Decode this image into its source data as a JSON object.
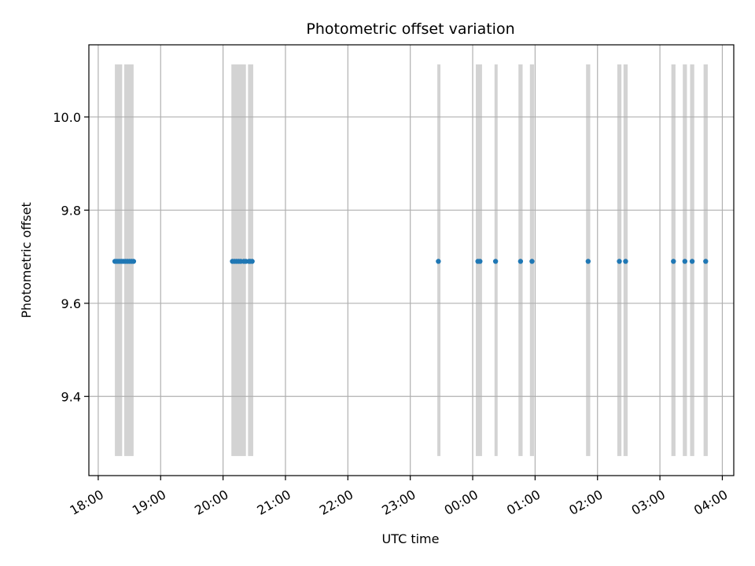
{
  "chart_data": {
    "type": "scatter",
    "title": "Photometric offset variation",
    "xlabel": "UTC time",
    "ylabel": "Photometric offset",
    "x_ticks": [
      "18:00",
      "19:00",
      "20:00",
      "21:00",
      "22:00",
      "23:00",
      "00:00",
      "01:00",
      "02:00",
      "03:00",
      "04:00"
    ],
    "y_ticks": [
      "9.4",
      "9.6",
      "9.8",
      "10.0"
    ],
    "xlim": [
      "17:51",
      "04:11"
    ],
    "ylim": [
      9.23,
      10.155
    ],
    "grid": true,
    "series": [
      {
        "color": "#1f77b4",
        "points": [
          {
            "t": "18:16",
            "y": 9.69
          },
          {
            "t": "18:18",
            "y": 9.69
          },
          {
            "t": "18:20",
            "y": 9.69
          },
          {
            "t": "18:22",
            "y": 9.69
          },
          {
            "t": "18:24",
            "y": 9.69
          },
          {
            "t": "18:26",
            "y": 9.69
          },
          {
            "t": "18:28",
            "y": 9.69
          },
          {
            "t": "18:30",
            "y": 9.69
          },
          {
            "t": "18:32",
            "y": 9.69
          },
          {
            "t": "18:34",
            "y": 9.69
          },
          {
            "t": "20:09",
            "y": 9.69
          },
          {
            "t": "20:11",
            "y": 9.69
          },
          {
            "t": "20:13",
            "y": 9.69
          },
          {
            "t": "20:15",
            "y": 9.69
          },
          {
            "t": "20:17",
            "y": 9.69
          },
          {
            "t": "20:20",
            "y": 9.69
          },
          {
            "t": "20:22",
            "y": 9.69
          },
          {
            "t": "20:25",
            "y": 9.69
          },
          {
            "t": "20:26",
            "y": 9.69
          },
          {
            "t": "20:28",
            "y": 9.69
          },
          {
            "t": "23:27",
            "y": 9.69
          },
          {
            "t": "00:05",
            "y": 9.69
          },
          {
            "t": "00:07",
            "y": 9.69
          },
          {
            "t": "00:22",
            "y": 9.69
          },
          {
            "t": "00:46",
            "y": 9.69
          },
          {
            "t": "00:57",
            "y": 9.69
          },
          {
            "t": "01:51",
            "y": 9.69
          },
          {
            "t": "02:21",
            "y": 9.69
          },
          {
            "t": "02:27",
            "y": 9.69
          },
          {
            "t": "03:13",
            "y": 9.69
          },
          {
            "t": "03:24",
            "y": 9.69
          },
          {
            "t": "03:31",
            "y": 9.69
          },
          {
            "t": "03:44",
            "y": 9.69
          }
        ]
      }
    ],
    "shaded_spans": {
      "color": "#d3d3d3",
      "y_range": [
        9.272,
        10.113
      ],
      "intervals": [
        [
          "18:16",
          "18:23"
        ],
        [
          "18:25",
          "18:34"
        ],
        [
          "20:08",
          "20:22"
        ],
        [
          "20:24",
          "20:29"
        ],
        [
          "23:26",
          "23:29"
        ],
        [
          "00:03",
          "00:09"
        ],
        [
          "00:21",
          "00:24"
        ],
        [
          "00:44",
          "00:48"
        ],
        [
          "00:55",
          "00:59"
        ],
        [
          "01:49",
          "01:53"
        ],
        [
          "02:19",
          "02:23"
        ],
        [
          "02:25",
          "02:29"
        ],
        [
          "03:11",
          "03:15"
        ],
        [
          "03:22",
          "03:26"
        ],
        [
          "03:29",
          "03:33"
        ],
        [
          "03:42",
          "03:46"
        ]
      ]
    }
  }
}
